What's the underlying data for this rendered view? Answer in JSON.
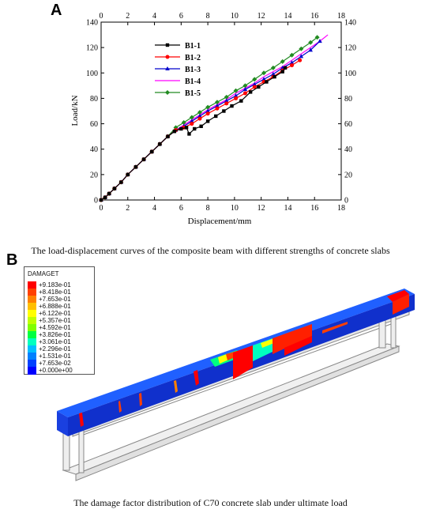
{
  "panel_a_letter": "A",
  "panel_b_letter": "B",
  "caption_a": "The load-displacement curves of the composite beam with different strengths of concrete slabs",
  "caption_b": "The damage factor distribution of C70 concrete slab under ultimate load",
  "chart_data": {
    "type": "line",
    "xlabel": "Displacement/mm",
    "ylabel": "Load/kN",
    "xlim": [
      0,
      18
    ],
    "ylim": [
      0,
      140
    ],
    "x_ticks": [
      0,
      2,
      4,
      6,
      8,
      10,
      12,
      14,
      16,
      18
    ],
    "y_ticks": [
      0,
      20,
      40,
      60,
      80,
      100,
      120,
      140
    ],
    "mirror_axes": true,
    "legend_position": "upper-left-inside",
    "series": [
      {
        "name": "B1-1",
        "color": "#000000",
        "marker": "square",
        "x": [
          0,
          0.3,
          0.6,
          1.0,
          1.5,
          2.0,
          2.6,
          3.2,
          3.8,
          4.4,
          5.0,
          5.5,
          6.0,
          6.4,
          6.6,
          7.0,
          7.5,
          8.0,
          8.6,
          9.2,
          9.8,
          10.5,
          11.2,
          11.8,
          12.4,
          13.0,
          13.6,
          13.8
        ],
        "y": [
          0,
          2,
          5,
          9,
          14,
          20,
          26,
          32,
          38,
          44,
          50,
          54,
          56,
          57,
          52,
          56,
          58,
          62,
          66,
          70,
          74,
          78,
          85,
          89,
          93,
          97,
          101,
          104
        ]
      },
      {
        "name": "B1-2",
        "color": "#ff0000",
        "marker": "circle",
        "x": [
          0,
          0.3,
          0.6,
          1.0,
          1.5,
          2.0,
          2.6,
          3.2,
          3.8,
          4.4,
          5.0,
          5.6,
          6.2,
          6.8,
          7.4,
          8.0,
          8.7,
          9.4,
          10.1,
          10.8,
          11.5,
          12.2,
          12.9,
          13.6,
          14.3,
          14.9
        ],
        "y": [
          0,
          2,
          5,
          9,
          14,
          20,
          26,
          32,
          38,
          44,
          50,
          55,
          57,
          60,
          64,
          68,
          72,
          76,
          80,
          84,
          89,
          93,
          97,
          102,
          106,
          110
        ]
      },
      {
        "name": "B1-3",
        "color": "#0000cc",
        "marker": "triangle",
        "x": [
          0,
          0.3,
          0.6,
          1.0,
          1.5,
          2.0,
          2.6,
          3.2,
          3.8,
          4.4,
          5.0,
          5.6,
          6.2,
          6.8,
          7.4,
          8.0,
          8.7,
          9.4,
          10.1,
          10.8,
          11.5,
          12.2,
          12.9,
          13.6,
          14.3,
          15.0,
          15.7,
          16.4
        ],
        "y": [
          0,
          2,
          5,
          9,
          14,
          20,
          26,
          32,
          38,
          44,
          50,
          55,
          58,
          62,
          66,
          70,
          74,
          78,
          82,
          87,
          91,
          95,
          99,
          104,
          108,
          113,
          118,
          125
        ]
      },
      {
        "name": "B1-4",
        "color": "#ff00ff",
        "marker": "none",
        "x": [
          0,
          0.3,
          0.6,
          1.0,
          1.5,
          2.0,
          2.6,
          3.2,
          3.8,
          4.4,
          5.0,
          5.6,
          6.2,
          6.8,
          7.4,
          8.0,
          8.7,
          9.4,
          10.1,
          10.8,
          11.5,
          12.2,
          12.9,
          13.6,
          14.3,
          15.0,
          15.7,
          16.4,
          17.0
        ],
        "y": [
          0,
          2,
          5,
          9,
          14,
          20,
          26,
          32,
          38,
          44,
          50,
          55,
          59,
          63,
          67,
          71,
          75,
          79,
          84,
          88,
          92,
          97,
          101,
          105,
          110,
          115,
          120,
          125,
          130
        ]
      },
      {
        "name": "B1-5",
        "color": "#228b22",
        "marker": "diamond",
        "x": [
          0,
          0.3,
          0.6,
          1.0,
          1.5,
          2.0,
          2.6,
          3.2,
          3.8,
          4.4,
          5.0,
          5.6,
          6.2,
          6.8,
          7.4,
          8.0,
          8.7,
          9.4,
          10.1,
          10.8,
          11.5,
          12.2,
          12.9,
          13.6,
          14.3,
          15.0,
          15.7,
          16.2
        ],
        "y": [
          0,
          2,
          5,
          9,
          14,
          20,
          26,
          32,
          38,
          44,
          50,
          57,
          61,
          65,
          69,
          73,
          77,
          81,
          86,
          90,
          95,
          100,
          104,
          109,
          114,
          119,
          124,
          128
        ]
      }
    ]
  },
  "damage_legend": {
    "title": "DAMAGET",
    "entries": [
      {
        "label": "+9.183e-01",
        "color": "#ff0000"
      },
      {
        "label": "+8.418e-01",
        "color": "#ff4000"
      },
      {
        "label": "+7.653e-01",
        "color": "#ff8000"
      },
      {
        "label": "+6.888e-01",
        "color": "#ffbf00"
      },
      {
        "label": "+6.122e-01",
        "color": "#ffff00"
      },
      {
        "label": "+5.357e-01",
        "color": "#bfff00"
      },
      {
        "label": "+4.592e-01",
        "color": "#80ff00"
      },
      {
        "label": "+3.826e-01",
        "color": "#00ff40"
      },
      {
        "label": "+3.061e-01",
        "color": "#00ffbf"
      },
      {
        "label": "+2.296e-01",
        "color": "#00bfff"
      },
      {
        "label": "+1.531e-01",
        "color": "#0080ff"
      },
      {
        "label": "+7.653e-02",
        "color": "#0040ff"
      },
      {
        "label": "+0.000e+00",
        "color": "#0000ff"
      }
    ]
  }
}
